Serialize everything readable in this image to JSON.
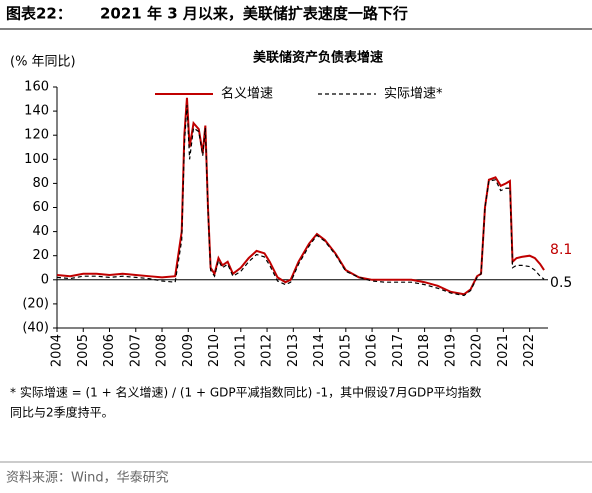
{
  "header": {
    "label": "图表22：",
    "title": "2021 年 3 月以来，美联储扩表速度一路下行"
  },
  "chart_data": {
    "type": "line",
    "title": "美联储资产负债表增速",
    "y_label": "(% 年同比)",
    "x": [
      2004,
      2004.5,
      2005,
      2005.5,
      2006,
      2006.5,
      2007,
      2007.5,
      2008,
      2008.5,
      2008.75,
      2008.85,
      2008.95,
      2009.05,
      2009.2,
      2009.4,
      2009.55,
      2009.65,
      2009.75,
      2009.85,
      2010,
      2010.15,
      2010.3,
      2010.5,
      2010.7,
      2011,
      2011.3,
      2011.6,
      2011.9,
      2012.1,
      2012.4,
      2012.7,
      2012.9,
      2013.2,
      2013.6,
      2013.9,
      2014.2,
      2014.6,
      2015,
      2015.5,
      2016,
      2016.5,
      2017,
      2017.5,
      2018,
      2018.5,
      2019,
      2019.5,
      2019.75,
      2020,
      2020.15,
      2020.3,
      2020.45,
      2020.7,
      2020.9,
      2021.1,
      2021.25,
      2021.35,
      2021.5,
      2021.7,
      2022,
      2022.2,
      2022.4,
      2022.55
    ],
    "series": [
      {
        "name": "名义增速",
        "color": "#c00000",
        "dash": false,
        "values": [
          4,
          3,
          5,
          5,
          4,
          5,
          4,
          3,
          2,
          3,
          40,
          120,
          151,
          110,
          130,
          125,
          105,
          128,
          60,
          10,
          5,
          18,
          12,
          15,
          5,
          10,
          18,
          24,
          22,
          15,
          2,
          -2,
          0,
          15,
          30,
          38,
          33,
          22,
          8,
          2,
          0,
          0,
          0,
          0,
          -2,
          -5,
          -10,
          -12,
          -8,
          3,
          5,
          60,
          83,
          85,
          78,
          80,
          82,
          15,
          18,
          19,
          20,
          18,
          13,
          8.1
        ]
      },
      {
        "name": "实际增速*",
        "color": "#000000",
        "dash": true,
        "values": [
          2,
          1,
          3,
          3,
          2,
          3,
          2,
          1,
          -1,
          -2,
          33,
          112,
          145,
          100,
          126,
          123,
          103,
          126,
          58,
          8,
          3,
          16,
          10,
          13,
          3,
          7,
          15,
          21,
          19,
          12,
          -1,
          -4,
          -2,
          13,
          28,
          37,
          32,
          21,
          7,
          2,
          -1,
          -2,
          -2,
          -2,
          -4,
          -7,
          -11,
          -13,
          -9,
          2,
          5,
          60,
          82,
          83,
          74,
          76,
          76,
          10,
          12,
          12,
          11,
          8,
          3,
          0.5
        ]
      }
    ],
    "xlim": [
      2004,
      2022.7
    ],
    "xticks": [
      2004,
      2005,
      2006,
      2007,
      2008,
      2009,
      2010,
      2011,
      2012,
      2013,
      2014,
      2015,
      2016,
      2017,
      2018,
      2019,
      2020,
      2021,
      2022
    ],
    "ylim": [
      -40,
      160
    ],
    "yticks": [
      160,
      140,
      120,
      100,
      80,
      60,
      40,
      20,
      0,
      {
        "value": -20,
        "label": "(20)"
      },
      {
        "value": -40,
        "label": "(40)"
      }
    ]
  },
  "footnote": [
    "* 实际增速 = (1 + 名义增速) / (1 + GDP平减指数同比) -1，其中假设7月GDP平均指数",
    "同比与2季度持平。"
  ],
  "source": "资料来源：Wind，华泰研究"
}
